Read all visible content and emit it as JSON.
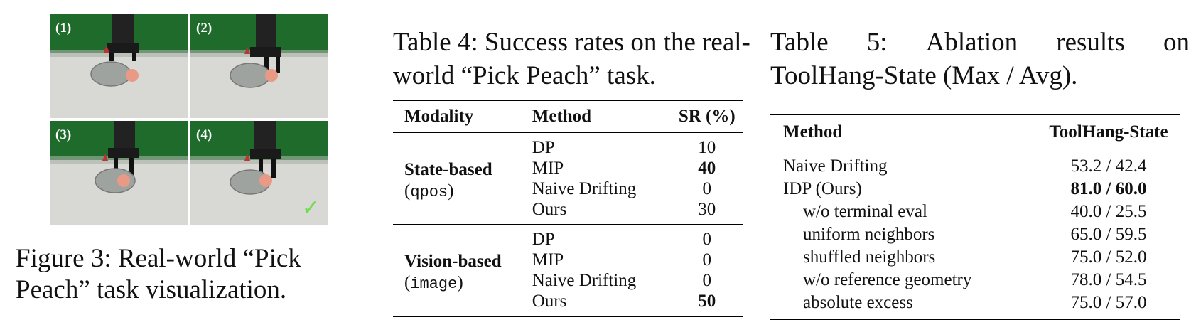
{
  "figure3": {
    "panels": [
      {
        "label": "(1)",
        "checked": false
      },
      {
        "label": "(2)",
        "checked": false
      },
      {
        "label": "(3)",
        "checked": false
      },
      {
        "label": "(4)",
        "checked": true
      }
    ],
    "check_mark": "✓",
    "caption": "Figure 3: Real-world “Pick Peach” task visualization."
  },
  "table4": {
    "caption": "Table 4: Success rates on the real-world “Pick Peach” task.",
    "headers": {
      "modality": "Modality",
      "method": "Method",
      "sr": "SR (%)"
    },
    "groups": [
      {
        "modality": "State-based",
        "modality_sub": "qpos",
        "rows": [
          {
            "method": "DP",
            "sr": "10"
          },
          {
            "method": "MIP",
            "sr": "40",
            "bold": true
          },
          {
            "method": "Naive Drifting",
            "sr": "0"
          },
          {
            "method": "Ours",
            "sr": "30"
          }
        ]
      },
      {
        "modality": "Vision-based",
        "modality_sub": "image",
        "rows": [
          {
            "method": "DP",
            "sr": "0"
          },
          {
            "method": "MIP",
            "sr": "0"
          },
          {
            "method": "Naive Drifting",
            "sr": "0"
          },
          {
            "method": "Ours",
            "sr": "50",
            "bold": true
          }
        ]
      }
    ]
  },
  "table5": {
    "caption_line1": [
      "Table",
      "5:",
      "Ablation",
      "results",
      "on"
    ],
    "caption_line2": "ToolHang-State (Max / Avg).",
    "headers": {
      "method": "Method",
      "value": "ToolHang-State"
    },
    "rows": [
      {
        "method": "Naive Drifting",
        "value": "53.2 / 42.4",
        "indent": false,
        "bold": false
      },
      {
        "method": "IDP (Ours)",
        "value": "81.0 / 60.0",
        "indent": false,
        "bold": true
      },
      {
        "method": "w/o terminal eval",
        "value": "40.0 / 25.5",
        "indent": true,
        "bold": false
      },
      {
        "method": "uniform neighbors",
        "value": "65.0 / 59.5",
        "indent": true,
        "bold": false
      },
      {
        "method": "shuffled neighbors",
        "value": "75.0 / 52.0",
        "indent": true,
        "bold": false
      },
      {
        "method": "w/o reference geometry",
        "value": "78.0 / 54.5",
        "indent": true,
        "bold": false
      },
      {
        "method": "absolute excess",
        "value": "75.0 / 57.0",
        "indent": true,
        "bold": false
      }
    ]
  }
}
